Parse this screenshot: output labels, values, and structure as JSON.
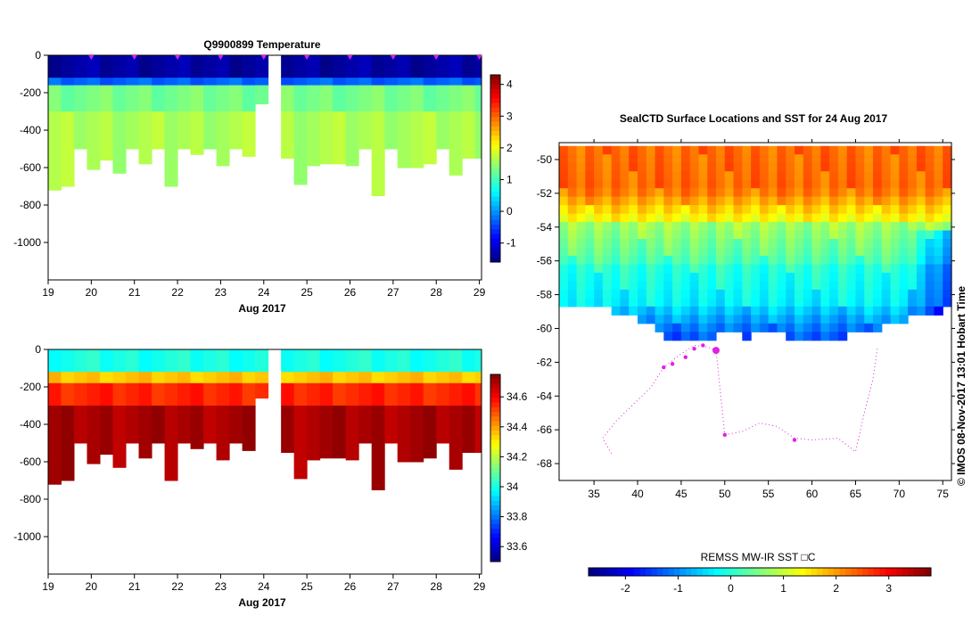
{
  "chart_data": [
    {
      "type": "heatmap",
      "title": "Q9900899  Temperature",
      "xlabel": "Aug 2017",
      "x_ticks": [
        "19",
        "20",
        "21",
        "22",
        "23",
        "24",
        "25",
        "26",
        "27",
        "28",
        "29"
      ],
      "y_ticks": [
        "0",
        "-200",
        "-400",
        "-600",
        "-800",
        "-1000"
      ],
      "xlim": [
        19,
        29.05
      ],
      "ylim": [
        -1200,
        0
      ],
      "colorbar_ticks": [
        "4",
        "3",
        "2",
        "1",
        "0",
        "-1"
      ],
      "colorbar_range": [
        -1.6,
        4.3
      ],
      "profile_days": [
        19,
        19.3,
        19.6,
        19.9,
        20.2,
        20.5,
        20.8,
        21.1,
        21.4,
        21.7,
        22.0,
        22.3,
        22.6,
        22.9,
        23.2,
        23.5,
        23.8,
        24.1,
        24.4,
        24.7,
        25.0,
        25.3,
        25.6,
        25.9,
        26.2,
        26.5,
        26.8,
        27.1,
        27.4,
        27.7,
        28.0,
        28.3,
        28.6,
        28.9
      ],
      "max_depths": [
        720,
        700,
        500,
        610,
        560,
        630,
        500,
        580,
        500,
        700,
        500,
        530,
        500,
        590,
        500,
        540,
        260,
        0,
        550,
        690,
        590,
        580,
        580,
        590,
        500,
        750,
        500,
        600,
        600,
        580,
        500,
        640,
        550,
        550
      ],
      "layers": [
        {
          "depth_range": [
            0,
            120
          ],
          "value": -1.4
        },
        {
          "depth_range": [
            120,
            160
          ],
          "value": -0.3
        },
        {
          "depth_range": [
            160,
            300
          ],
          "value": 1.3
        },
        {
          "depth_range": [
            300,
            800
          ],
          "value": 1.6
        }
      ],
      "markers": [
        20,
        21,
        22,
        23,
        24,
        25,
        26,
        27,
        28,
        29
      ]
    },
    {
      "type": "heatmap",
      "title": "",
      "xlabel": "Aug 2017",
      "x_ticks": [
        "19",
        "20",
        "21",
        "22",
        "23",
        "24",
        "25",
        "26",
        "27",
        "28",
        "29"
      ],
      "y_ticks": [
        "0",
        "-200",
        "-400",
        "-600",
        "-800",
        "-1000"
      ],
      "xlim": [
        19,
        29.05
      ],
      "ylim": [
        -1200,
        0
      ],
      "colorbar_ticks": [
        "34.6",
        "34.4",
        "34.2",
        "34",
        "33.8",
        "33.6"
      ],
      "colorbar_range": [
        33.5,
        34.75
      ],
      "layers": [
        {
          "depth_range": [
            0,
            120
          ],
          "value": 34.0
        },
        {
          "depth_range": [
            120,
            180
          ],
          "value": 34.35
        },
        {
          "depth_range": [
            180,
            300
          ],
          "value": 34.55
        },
        {
          "depth_range": [
            300,
            800
          ],
          "value": 34.7
        }
      ]
    },
    {
      "type": "heatmap",
      "title": "SealCTD Surface Locations and SST for 24 Aug 2017",
      "x_ticks": [
        "35",
        "40",
        "45",
        "50",
        "55",
        "60",
        "65",
        "70",
        "75"
      ],
      "y_ticks": [
        "-50",
        "-52",
        "-54",
        "-56",
        "-58",
        "-60",
        "-62",
        "-64",
        "-66",
        "-68"
      ],
      "xlim": [
        31,
        76
      ],
      "ylim": [
        -69,
        -49
      ],
      "colorbar_label": "REMSS MW-IR SST □C",
      "colorbar_ticks": [
        "-2",
        "-1",
        "0",
        "1",
        "2",
        "3"
      ],
      "colorbar_range": [
        -2.7,
        3.8
      ],
      "sst_bands": [
        {
          "lat_range": [
            -49.2,
            -51.5
          ],
          "value": 2.9
        },
        {
          "lat_range": [
            -51.5,
            -53.5
          ],
          "value": 1.9
        },
        {
          "lat_range": [
            -53.5,
            -56
          ],
          "value": 1.0
        },
        {
          "lat_range": [
            -56,
            -58.5
          ],
          "value": 0.6
        },
        {
          "lat_range": [
            -58.5,
            -61
          ],
          "value": -0.6
        }
      ],
      "track": [
        [
          37,
          -67.4
        ],
        [
          36,
          -66.5
        ],
        [
          37.5,
          -65.5
        ],
        [
          39.5,
          -64.5
        ],
        [
          41.5,
          -63.5
        ],
        [
          43,
          -62.3
        ],
        [
          45,
          -61.5
        ],
        [
          46.5,
          -61
        ],
        [
          48,
          -61.1
        ],
        [
          49,
          -61.3
        ],
        [
          50,
          -66.3
        ],
        [
          52,
          -66.1
        ],
        [
          54,
          -65.6
        ],
        [
          56,
          -65.8
        ],
        [
          58,
          -66.5
        ],
        [
          60,
          -66.6
        ],
        [
          63,
          -66.5
        ],
        [
          65,
          -67.3
        ],
        [
          66,
          -65
        ],
        [
          67,
          -63
        ],
        [
          67.5,
          -61.2
        ]
      ],
      "surface_points": [
        [
          43,
          -62.3
        ],
        [
          44,
          -62.1
        ],
        [
          45.5,
          -61.7
        ],
        [
          46.5,
          -61.2
        ],
        [
          47.5,
          -61
        ],
        [
          49,
          -61.3
        ],
        [
          50,
          -66.3
        ],
        [
          58,
          -66.6
        ]
      ],
      "copyright": "© IMOS 08-Nov-2017 13:01 Hobart Time"
    }
  ]
}
